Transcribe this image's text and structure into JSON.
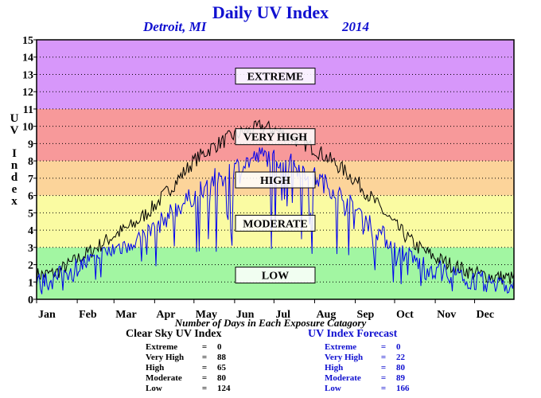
{
  "chart_data": {
    "type": "line",
    "title": "Daily UV Index",
    "location": "Detroit, MI",
    "year": "2014",
    "ylabel": "UV Index",
    "xlabel": "",
    "ylim": [
      0,
      15
    ],
    "xlim": [
      1,
      365
    ],
    "y_ticks": [
      "0",
      "1",
      "2",
      "3",
      "4",
      "5",
      "6",
      "7",
      "8",
      "9",
      "10",
      "11",
      "12",
      "13",
      "14",
      "15"
    ],
    "x_ticks": [
      {
        "label": "Jan",
        "day": 1
      },
      {
        "label": "Feb",
        "day": 32
      },
      {
        "label": "Mar",
        "day": 60
      },
      {
        "label": "Apr",
        "day": 91
      },
      {
        "label": "May",
        "day": 121
      },
      {
        "label": "Jun",
        "day": 152
      },
      {
        "label": "Jul",
        "day": 182
      },
      {
        "label": "Aug",
        "day": 213
      },
      {
        "label": "Sep",
        "day": 244
      },
      {
        "label": "Oct",
        "day": 274
      },
      {
        "label": "Nov",
        "day": 305
      },
      {
        "label": "Dec",
        "day": 335
      }
    ],
    "bands": [
      {
        "label": "LOW",
        "from": 0,
        "to": 3,
        "color": "#a2f6a2",
        "label_y": 1.4
      },
      {
        "label": "MODERATE",
        "from": 3,
        "to": 6,
        "color": "#fafba2",
        "label_y": 4.4
      },
      {
        "label": "HIGH",
        "from": 6,
        "to": 8,
        "color": "#fcd49a",
        "label_y": 6.9
      },
      {
        "label": "VERY HIGH",
        "from": 8,
        "to": 11,
        "color": "#f7999a",
        "label_y": 9.4
      },
      {
        "label": "EXTREME",
        "from": 11,
        "to": 15,
        "color": "#d797fa",
        "label_y": 12.9
      }
    ],
    "grid": true,
    "series": [
      {
        "name": "Clear Sky UV Index",
        "color": "#000000",
        "points": [
          [
            1,
            1.4
          ],
          [
            15,
            1.5
          ],
          [
            32,
            2.3
          ],
          [
            45,
            2.9
          ],
          [
            60,
            3.7
          ],
          [
            75,
            4.3
          ],
          [
            91,
            5.4
          ],
          [
            105,
            6.6
          ],
          [
            121,
            8.0
          ],
          [
            135,
            8.8
          ],
          [
            152,
            9.5
          ],
          [
            166,
            9.8
          ],
          [
            172,
            10.0
          ],
          [
            182,
            9.8
          ],
          [
            197,
            9.3
          ],
          [
            213,
            8.7
          ],
          [
            228,
            7.9
          ],
          [
            244,
            6.9
          ],
          [
            258,
            5.7
          ],
          [
            274,
            4.3
          ],
          [
            290,
            3.1
          ],
          [
            305,
            2.4
          ],
          [
            320,
            1.9
          ],
          [
            335,
            1.5
          ],
          [
            350,
            1.3
          ],
          [
            365,
            1.2
          ]
        ]
      },
      {
        "name": "UV Index Forecast",
        "color": "#0000ee",
        "points": [
          [
            1,
            0.9
          ],
          [
            15,
            1.2
          ],
          [
            32,
            1.9
          ],
          [
            45,
            2.3
          ],
          [
            60,
            2.9
          ],
          [
            75,
            3.4
          ],
          [
            91,
            4.1
          ],
          [
            105,
            5.1
          ],
          [
            121,
            6.0
          ],
          [
            135,
            6.9
          ],
          [
            152,
            7.6
          ],
          [
            166,
            8.1
          ],
          [
            172,
            8.3
          ],
          [
            182,
            8.2
          ],
          [
            197,
            7.8
          ],
          [
            213,
            7.1
          ],
          [
            228,
            6.3
          ],
          [
            244,
            5.2
          ],
          [
            258,
            4.2
          ],
          [
            274,
            3.0
          ],
          [
            290,
            2.2
          ],
          [
            305,
            1.7
          ],
          [
            320,
            1.4
          ],
          [
            335,
            1.1
          ],
          [
            350,
            0.9
          ],
          [
            365,
            0.8
          ]
        ]
      }
    ]
  },
  "summary": {
    "caption": "Number of Days in Each Exposure Catagory",
    "clear_sky": {
      "title": "Clear Sky UV Index",
      "rows": [
        {
          "label": "Extreme",
          "sep": "=",
          "value": "0"
        },
        {
          "label": "Very High",
          "sep": "=",
          "value": "88"
        },
        {
          "label": "High",
          "sep": "=",
          "value": "65"
        },
        {
          "label": "Moderate",
          "sep": "=",
          "value": "80"
        },
        {
          "label": "Low",
          "sep": "=",
          "value": "124"
        }
      ]
    },
    "forecast": {
      "title": "UV Index Forecast",
      "rows": [
        {
          "label": "Extreme",
          "sep": "=",
          "value": "0"
        },
        {
          "label": "Very High",
          "sep": "=",
          "value": "22"
        },
        {
          "label": "High",
          "sep": "=",
          "value": "80"
        },
        {
          "label": "Moderate",
          "sep": "=",
          "value": "89"
        },
        {
          "label": "Low",
          "sep": "=",
          "value": "166"
        }
      ]
    }
  }
}
